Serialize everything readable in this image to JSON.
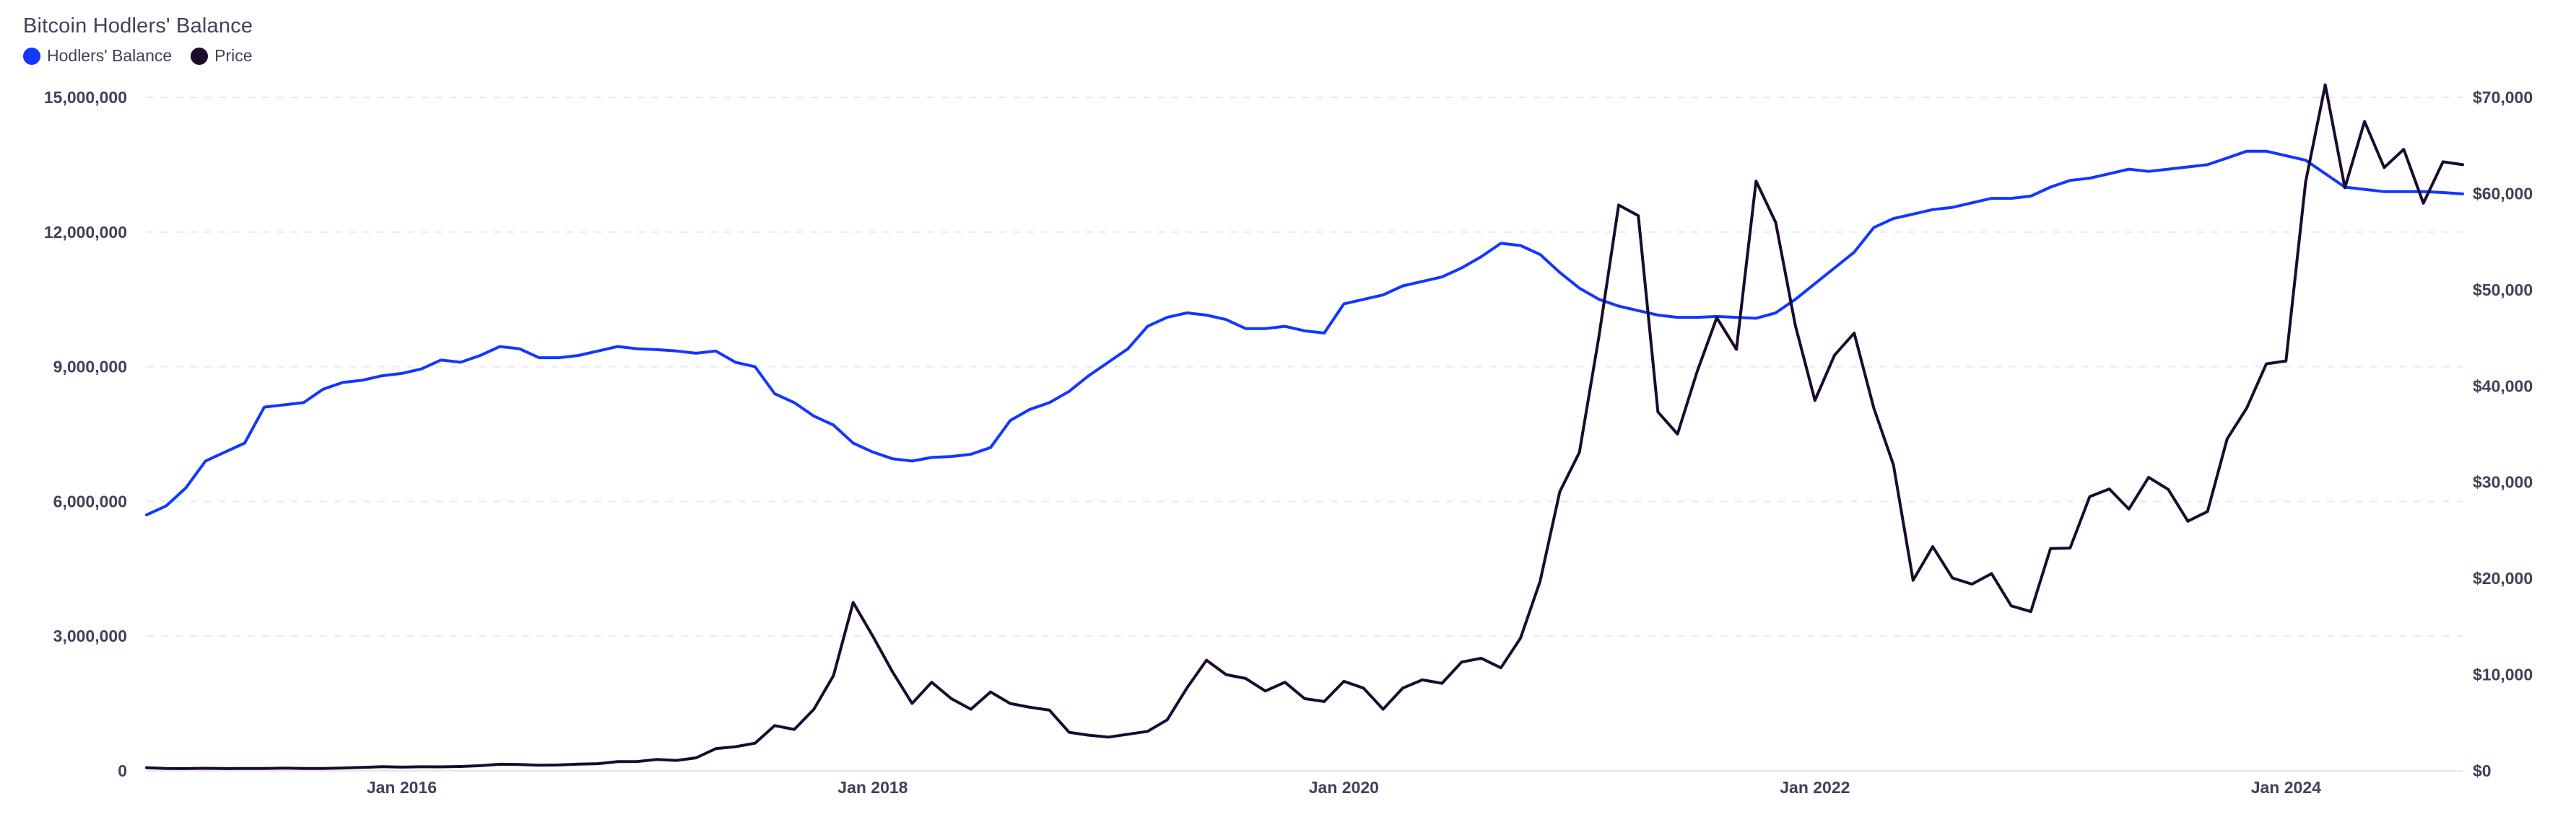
{
  "chart_data": {
    "type": "line",
    "title": "Bitcoin Hodlers' Balance",
    "xlabel": "",
    "ylabel": "",
    "xlim": [
      "2014-12",
      "2024-10"
    ],
    "x_ticks": [
      "Jan 2016",
      "Jan 2018",
      "Jan 2020",
      "Jan 2022",
      "Jan 2024"
    ],
    "y_left_ticks": [
      "0",
      "3,000,000",
      "6,000,000",
      "9,000,000",
      "12,000,000",
      "15,000,000"
    ],
    "y_right_ticks": [
      "$0",
      "$10,000",
      "$20,000",
      "$30,000",
      "$40,000",
      "$50,000",
      "$60,000",
      "$70,000"
    ],
    "ylim_left": [
      0,
      15000000
    ],
    "ylim_right": [
      0,
      70000
    ],
    "grid": "horizontal dashed",
    "legend_position": "top-left",
    "series": [
      {
        "name": "Hodlers' Balance",
        "axis": "left",
        "color": "#1237ff",
        "points": [
          [
            "2014-12",
            5700000
          ],
          [
            "2015-01",
            5900000
          ],
          [
            "2015-02",
            6300000
          ],
          [
            "2015-03",
            6900000
          ],
          [
            "2015-04",
            7100000
          ],
          [
            "2015-05",
            7300000
          ],
          [
            "2015-06",
            8100000
          ],
          [
            "2015-07",
            8150000
          ],
          [
            "2015-08",
            8200000
          ],
          [
            "2015-09",
            8500000
          ],
          [
            "2015-10",
            8650000
          ],
          [
            "2015-11",
            8700000
          ],
          [
            "2015-12",
            8800000
          ],
          [
            "2016-01",
            8850000
          ],
          [
            "2016-02",
            8950000
          ],
          [
            "2016-03",
            9150000
          ],
          [
            "2016-04",
            9100000
          ],
          [
            "2016-05",
            9250000
          ],
          [
            "2016-06",
            9450000
          ],
          [
            "2016-07",
            9400000
          ],
          [
            "2016-08",
            9200000
          ],
          [
            "2016-09",
            9200000
          ],
          [
            "2016-10",
            9250000
          ],
          [
            "2016-11",
            9350000
          ],
          [
            "2016-12",
            9450000
          ],
          [
            "2017-01",
            9400000
          ],
          [
            "2017-02",
            9380000
          ],
          [
            "2017-03",
            9350000
          ],
          [
            "2017-04",
            9300000
          ],
          [
            "2017-05",
            9350000
          ],
          [
            "2017-06",
            9100000
          ],
          [
            "2017-07",
            9000000
          ],
          [
            "2017-08",
            8400000
          ],
          [
            "2017-09",
            8200000
          ],
          [
            "2017-10",
            7900000
          ],
          [
            "2017-11",
            7700000
          ],
          [
            "2017-12",
            7300000
          ],
          [
            "2018-01",
            7100000
          ],
          [
            "2018-02",
            6950000
          ],
          [
            "2018-03",
            6900000
          ],
          [
            "2018-04",
            6980000
          ],
          [
            "2018-05",
            7000000
          ],
          [
            "2018-06",
            7050000
          ],
          [
            "2018-07",
            7200000
          ],
          [
            "2018-08",
            7800000
          ],
          [
            "2018-09",
            8050000
          ],
          [
            "2018-10",
            8200000
          ],
          [
            "2018-11",
            8450000
          ],
          [
            "2018-12",
            8800000
          ],
          [
            "2019-01",
            9100000
          ],
          [
            "2019-02",
            9400000
          ],
          [
            "2019-03",
            9900000
          ],
          [
            "2019-04",
            10100000
          ],
          [
            "2019-05",
            10200000
          ],
          [
            "2019-06",
            10150000
          ],
          [
            "2019-07",
            10050000
          ],
          [
            "2019-08",
            9850000
          ],
          [
            "2019-09",
            9850000
          ],
          [
            "2019-10",
            9900000
          ],
          [
            "2019-11",
            9800000
          ],
          [
            "2019-12",
            9750000
          ],
          [
            "2020-01",
            10400000
          ],
          [
            "2020-02",
            10500000
          ],
          [
            "2020-03",
            10600000
          ],
          [
            "2020-04",
            10800000
          ],
          [
            "2020-05",
            10900000
          ],
          [
            "2020-06",
            11000000
          ],
          [
            "2020-07",
            11200000
          ],
          [
            "2020-08",
            11450000
          ],
          [
            "2020-09",
            11750000
          ],
          [
            "2020-10",
            11700000
          ],
          [
            "2020-11",
            11500000
          ],
          [
            "2020-12",
            11100000
          ],
          [
            "2021-01",
            10750000
          ],
          [
            "2021-02",
            10500000
          ],
          [
            "2021-03",
            10350000
          ],
          [
            "2021-04",
            10250000
          ],
          [
            "2021-05",
            10150000
          ],
          [
            "2021-06",
            10100000
          ],
          [
            "2021-07",
            10100000
          ],
          [
            "2021-08",
            10120000
          ],
          [
            "2021-09",
            10100000
          ],
          [
            "2021-10",
            10080000
          ],
          [
            "2021-11",
            10200000
          ],
          [
            "2021-12",
            10500000
          ],
          [
            "2022-01",
            10850000
          ],
          [
            "2022-02",
            11200000
          ],
          [
            "2022-03",
            11550000
          ],
          [
            "2022-04",
            12100000
          ],
          [
            "2022-05",
            12300000
          ],
          [
            "2022-06",
            12400000
          ],
          [
            "2022-07",
            12500000
          ],
          [
            "2022-08",
            12550000
          ],
          [
            "2022-09",
            12650000
          ],
          [
            "2022-10",
            12750000
          ],
          [
            "2022-11",
            12750000
          ],
          [
            "2022-12",
            12800000
          ],
          [
            "2023-01",
            13000000
          ],
          [
            "2023-02",
            13150000
          ],
          [
            "2023-03",
            13200000
          ],
          [
            "2023-04",
            13300000
          ],
          [
            "2023-05",
            13400000
          ],
          [
            "2023-06",
            13350000
          ],
          [
            "2023-07",
            13400000
          ],
          [
            "2023-08",
            13450000
          ],
          [
            "2023-09",
            13500000
          ],
          [
            "2023-10",
            13650000
          ],
          [
            "2023-11",
            13800000
          ],
          [
            "2023-12",
            13800000
          ],
          [
            "2024-01",
            13700000
          ],
          [
            "2024-02",
            13600000
          ],
          [
            "2024-03",
            13300000
          ],
          [
            "2024-04",
            13000000
          ],
          [
            "2024-05",
            12950000
          ],
          [
            "2024-06",
            12900000
          ],
          [
            "2024-07",
            12900000
          ],
          [
            "2024-08",
            12900000
          ],
          [
            "2024-09",
            12880000
          ],
          [
            "2024-10",
            12850000
          ]
        ]
      },
      {
        "name": "Price",
        "axis": "right",
        "color": "#1c0a2e",
        "points": [
          [
            "2014-12",
            320
          ],
          [
            "2015-01",
            250
          ],
          [
            "2015-02",
            230
          ],
          [
            "2015-03",
            260
          ],
          [
            "2015-04",
            230
          ],
          [
            "2015-05",
            240
          ],
          [
            "2015-06",
            245
          ],
          [
            "2015-07",
            280
          ],
          [
            "2015-08",
            240
          ],
          [
            "2015-09",
            240
          ],
          [
            "2015-10",
            290
          ],
          [
            "2015-11",
            350
          ],
          [
            "2015-12",
            430
          ],
          [
            "2016-01",
            380
          ],
          [
            "2016-02",
            420
          ],
          [
            "2016-03",
            415
          ],
          [
            "2016-04",
            450
          ],
          [
            "2016-05",
            530
          ],
          [
            "2016-06",
            680
          ],
          [
            "2016-07",
            660
          ],
          [
            "2016-08",
            580
          ],
          [
            "2016-09",
            610
          ],
          [
            "2016-10",
            700
          ],
          [
            "2016-11",
            740
          ],
          [
            "2016-12",
            960
          ],
          [
            "2017-01",
            970
          ],
          [
            "2017-02",
            1180
          ],
          [
            "2017-03",
            1080
          ],
          [
            "2017-04",
            1350
          ],
          [
            "2017-05",
            2300
          ],
          [
            "2017-06",
            2500
          ],
          [
            "2017-07",
            2870
          ],
          [
            "2017-08",
            4700
          ],
          [
            "2017-09",
            4300
          ],
          [
            "2017-10",
            6400
          ],
          [
            "2017-11",
            9900
          ],
          [
            "2017-12",
            17500
          ],
          [
            "2018-01",
            14000
          ],
          [
            "2018-02",
            10300
          ],
          [
            "2018-03",
            7000
          ],
          [
            "2018-04",
            9200
          ],
          [
            "2018-05",
            7500
          ],
          [
            "2018-06",
            6400
          ],
          [
            "2018-07",
            8200
          ],
          [
            "2018-08",
            7000
          ],
          [
            "2018-09",
            6600
          ],
          [
            "2018-10",
            6300
          ],
          [
            "2018-11",
            4000
          ],
          [
            "2018-12",
            3700
          ],
          [
            "2019-01",
            3500
          ],
          [
            "2019-02",
            3800
          ],
          [
            "2019-03",
            4100
          ],
          [
            "2019-04",
            5300
          ],
          [
            "2019-05",
            8600
          ],
          [
            "2019-06",
            11500
          ],
          [
            "2019-07",
            10000
          ],
          [
            "2019-08",
            9600
          ],
          [
            "2019-09",
            8300
          ],
          [
            "2019-10",
            9200
          ],
          [
            "2019-11",
            7500
          ],
          [
            "2019-12",
            7200
          ],
          [
            "2020-01",
            9300
          ],
          [
            "2020-02",
            8600
          ],
          [
            "2020-03",
            6400
          ],
          [
            "2020-04",
            8600
          ],
          [
            "2020-05",
            9450
          ],
          [
            "2020-06",
            9100
          ],
          [
            "2020-07",
            11300
          ],
          [
            "2020-08",
            11700
          ],
          [
            "2020-09",
            10700
          ],
          [
            "2020-10",
            13800
          ],
          [
            "2020-11",
            19700
          ],
          [
            "2020-12",
            29000
          ],
          [
            "2021-01",
            33100
          ],
          [
            "2021-02",
            45200
          ],
          [
            "2021-03",
            58800
          ],
          [
            "2021-04",
            57700
          ],
          [
            "2021-05",
            37300
          ],
          [
            "2021-06",
            35000
          ],
          [
            "2021-07",
            41500
          ],
          [
            "2021-08",
            47100
          ],
          [
            "2021-09",
            43800
          ],
          [
            "2021-10",
            61300
          ],
          [
            "2021-11",
            57000
          ],
          [
            "2021-12",
            46300
          ],
          [
            "2022-01",
            38500
          ],
          [
            "2022-02",
            43200
          ],
          [
            "2022-03",
            45500
          ],
          [
            "2022-04",
            37700
          ],
          [
            "2022-05",
            31800
          ],
          [
            "2022-06",
            19800
          ],
          [
            "2022-07",
            23300
          ],
          [
            "2022-08",
            20050
          ],
          [
            "2022-09",
            19400
          ],
          [
            "2022-10",
            20500
          ],
          [
            "2022-11",
            17150
          ],
          [
            "2022-12",
            16550
          ],
          [
            "2023-01",
            23100
          ],
          [
            "2023-02",
            23150
          ],
          [
            "2023-03",
            28500
          ],
          [
            "2023-04",
            29300
          ],
          [
            "2023-05",
            27200
          ],
          [
            "2023-06",
            30500
          ],
          [
            "2023-07",
            29250
          ],
          [
            "2023-08",
            25950
          ],
          [
            "2023-09",
            26950
          ],
          [
            "2023-10",
            34500
          ],
          [
            "2023-11",
            37700
          ],
          [
            "2023-12",
            42300
          ],
          [
            "2024-01",
            42600
          ],
          [
            "2024-02",
            61200
          ],
          [
            "2024-03",
            71300
          ],
          [
            "2024-04",
            60600
          ],
          [
            "2024-05",
            67500
          ],
          [
            "2024-06",
            62700
          ],
          [
            "2024-07",
            64600
          ],
          [
            "2024-08",
            59000
          ],
          [
            "2024-09",
            63300
          ],
          [
            "2024-10",
            63000
          ]
        ]
      }
    ]
  }
}
